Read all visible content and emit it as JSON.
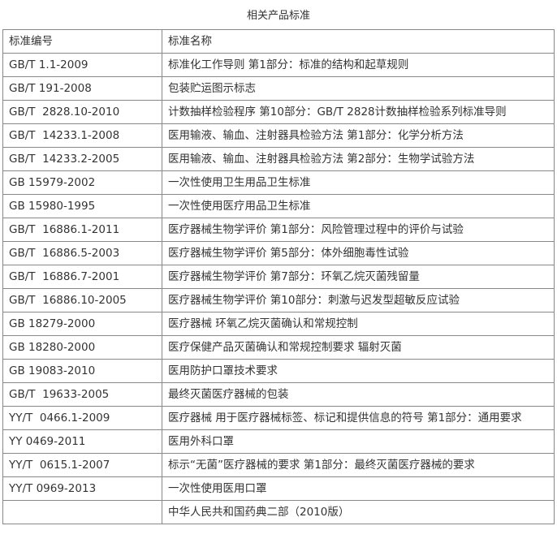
{
  "title": "相关产品标准",
  "table": {
    "header": [
      "标准编号",
      "标准名称"
    ],
    "rows": [
      {
        "code": "GB/T 1.1-2009",
        "name": "标准化工作导则 第1部分：标准的结构和起草规则"
      },
      {
        "code": "GB/T 191-2008",
        "name": "包装贮运图示标志"
      },
      {
        "code": "GB/T  2828.10-2010",
        "name": "计数抽样检验程序 第10部分：GB/T 2828计数抽样检验系列标准导则"
      },
      {
        "code": "GB/T  14233.1-2008",
        "name": "医用输液、输血、注射器具检验方法 第1部分：化学分析方法"
      },
      {
        "code": "GB/T  14233.2-2005",
        "name": "医用输液、输血、注射器具检验方法 第2部分：生物学试验方法"
      },
      {
        "code": "GB 15979-2002",
        "name": "一次性使用卫生用品卫生标准"
      },
      {
        "code": "GB 15980-1995",
        "name": "一次性使用医疗用品卫生标准"
      },
      {
        "code": "GB/T  16886.1-2011",
        "name": "医疗器械生物学评价  第1部分：风险管理过程中的评价与试验"
      },
      {
        "code": "GB/T  16886.5-2003",
        "name": "医疗器械生物学评价  第5部分：体外细胞毒性试验"
      },
      {
        "code": "GB/T  16886.7-2001",
        "name": "医疗器械生物学评价  第7部分：环氧乙烷灭菌残留量"
      },
      {
        "code": "GB/T  16886.10-2005",
        "name": "医疗器械生物学评价 第10部分：刺激与迟发型超敏反应试验"
      },
      {
        "code": "GB 18279-2000",
        "name": "医疗器械 环氧乙烷灭菌确认和常规控制"
      },
      {
        "code": "GB 18280-2000",
        "name": "医疗保健产品灭菌确认和常规控制要求 辐射灭菌"
      },
      {
        "code": "GB 19083-2010",
        "name": "医用防护口罩技术要求"
      },
      {
        "code": "GB/T  19633-2005",
        "name": "最终灭菌医疗器械的包装"
      },
      {
        "code": "YY/T  0466.1-2009",
        "name": "医疗器械 用于医疗器械标签、标记和提供信息的符号 第1部分：通用要求"
      },
      {
        "code": "YY 0469-2011",
        "name": "医用外科口罩"
      },
      {
        "code": "YY/T  0615.1-2007",
        "name": "标示“无菌”医疗器械的要求 第1部分：最终灭菌医疗器械的要求"
      },
      {
        "code": "YY/T 0969-2013",
        "name": "一次性使用医用口罩"
      },
      {
        "name": "中华人民共和国药典二部（2010版）"
      }
    ]
  }
}
